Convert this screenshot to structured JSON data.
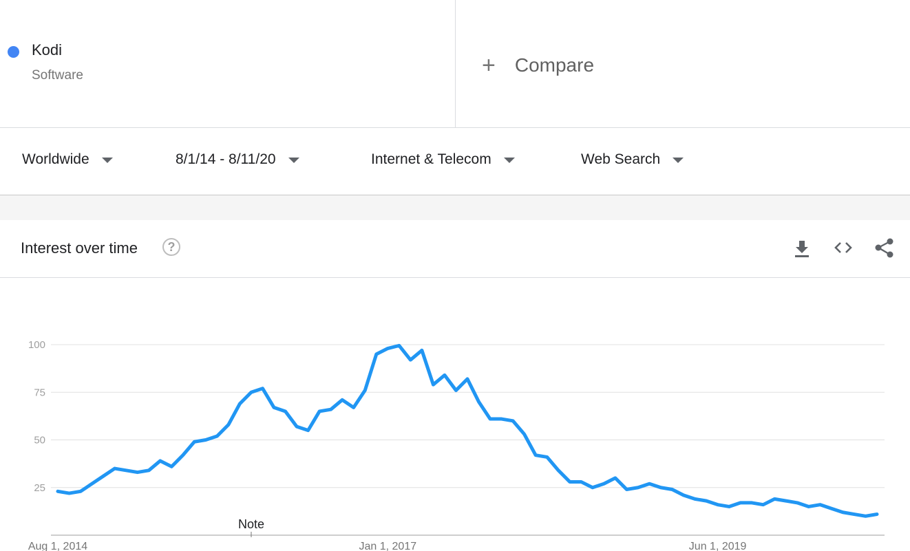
{
  "term": {
    "name": "Kodi",
    "category": "Software",
    "dot_color": "#4285f4"
  },
  "compare": {
    "plus": "+",
    "label": "Compare"
  },
  "filters": [
    {
      "label": "Worldwide",
      "icon": "caret-down-icon"
    },
    {
      "label": "8/1/14 - 8/11/20",
      "icon": "caret-down-icon"
    },
    {
      "label": "Internet & Telecom",
      "icon": "caret-down-icon"
    },
    {
      "label": "Web Search",
      "icon": "caret-down-icon"
    }
  ],
  "card": {
    "title": "Interest over time",
    "help_icon": "?",
    "icons": [
      "download-icon",
      "embed-code-icon",
      "share-icon"
    ]
  },
  "chart_data": {
    "type": "line",
    "series": [
      {
        "color": "#2196f3",
        "values": [
          23,
          22,
          23,
          27,
          31,
          35,
          34,
          33,
          34,
          39,
          36,
          42,
          49,
          50,
          52,
          58,
          69,
          75,
          77,
          67,
          65,
          57,
          55,
          65,
          66,
          71,
          67,
          76,
          95,
          98,
          99.5,
          92,
          97,
          79,
          84,
          76,
          82,
          70,
          61,
          61,
          60,
          53,
          42,
          41,
          34,
          28,
          28,
          25,
          27,
          30,
          24,
          25,
          27,
          25,
          24,
          21,
          19,
          18,
          16,
          15,
          17,
          17,
          16,
          19,
          18,
          17,
          15,
          16,
          14,
          12,
          11,
          10,
          11
        ]
      }
    ],
    "x_ticks": [
      "Aug 1, 2014",
      "Jan 1, 2017",
      "Jun 1, 2019"
    ],
    "x_tick_index": [
      0,
      29,
      58
    ],
    "y_ticks": [
      25,
      50,
      75,
      100
    ],
    "ylim": [
      0,
      100
    ],
    "grid": true,
    "annotation": {
      "label": "Note",
      "index": 17
    }
  }
}
